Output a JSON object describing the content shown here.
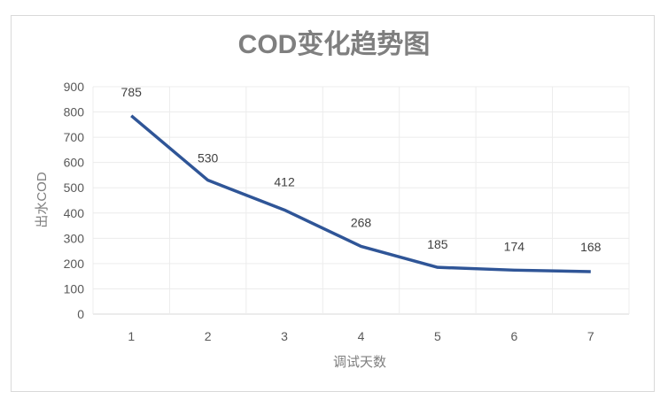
{
  "chart_data": {
    "type": "line",
    "title": "COD变化趋势图",
    "xlabel": "调试天数",
    "ylabel": "出水COD",
    "categories": [
      "1",
      "2",
      "3",
      "4",
      "5",
      "6",
      "7"
    ],
    "series": [
      {
        "name": "出水COD",
        "values": [
          785,
          530,
          412,
          268,
          185,
          174,
          168
        ],
        "color": "#2f5597"
      }
    ],
    "data_labels": [
      "785",
      "530",
      "412",
      "268",
      "185",
      "174",
      "168"
    ],
    "ylim": [
      0,
      900
    ],
    "yticks": [
      "0",
      "100",
      "200",
      "300",
      "400",
      "500",
      "600",
      "700",
      "800",
      "900"
    ],
    "grid": true,
    "legend": "none"
  }
}
